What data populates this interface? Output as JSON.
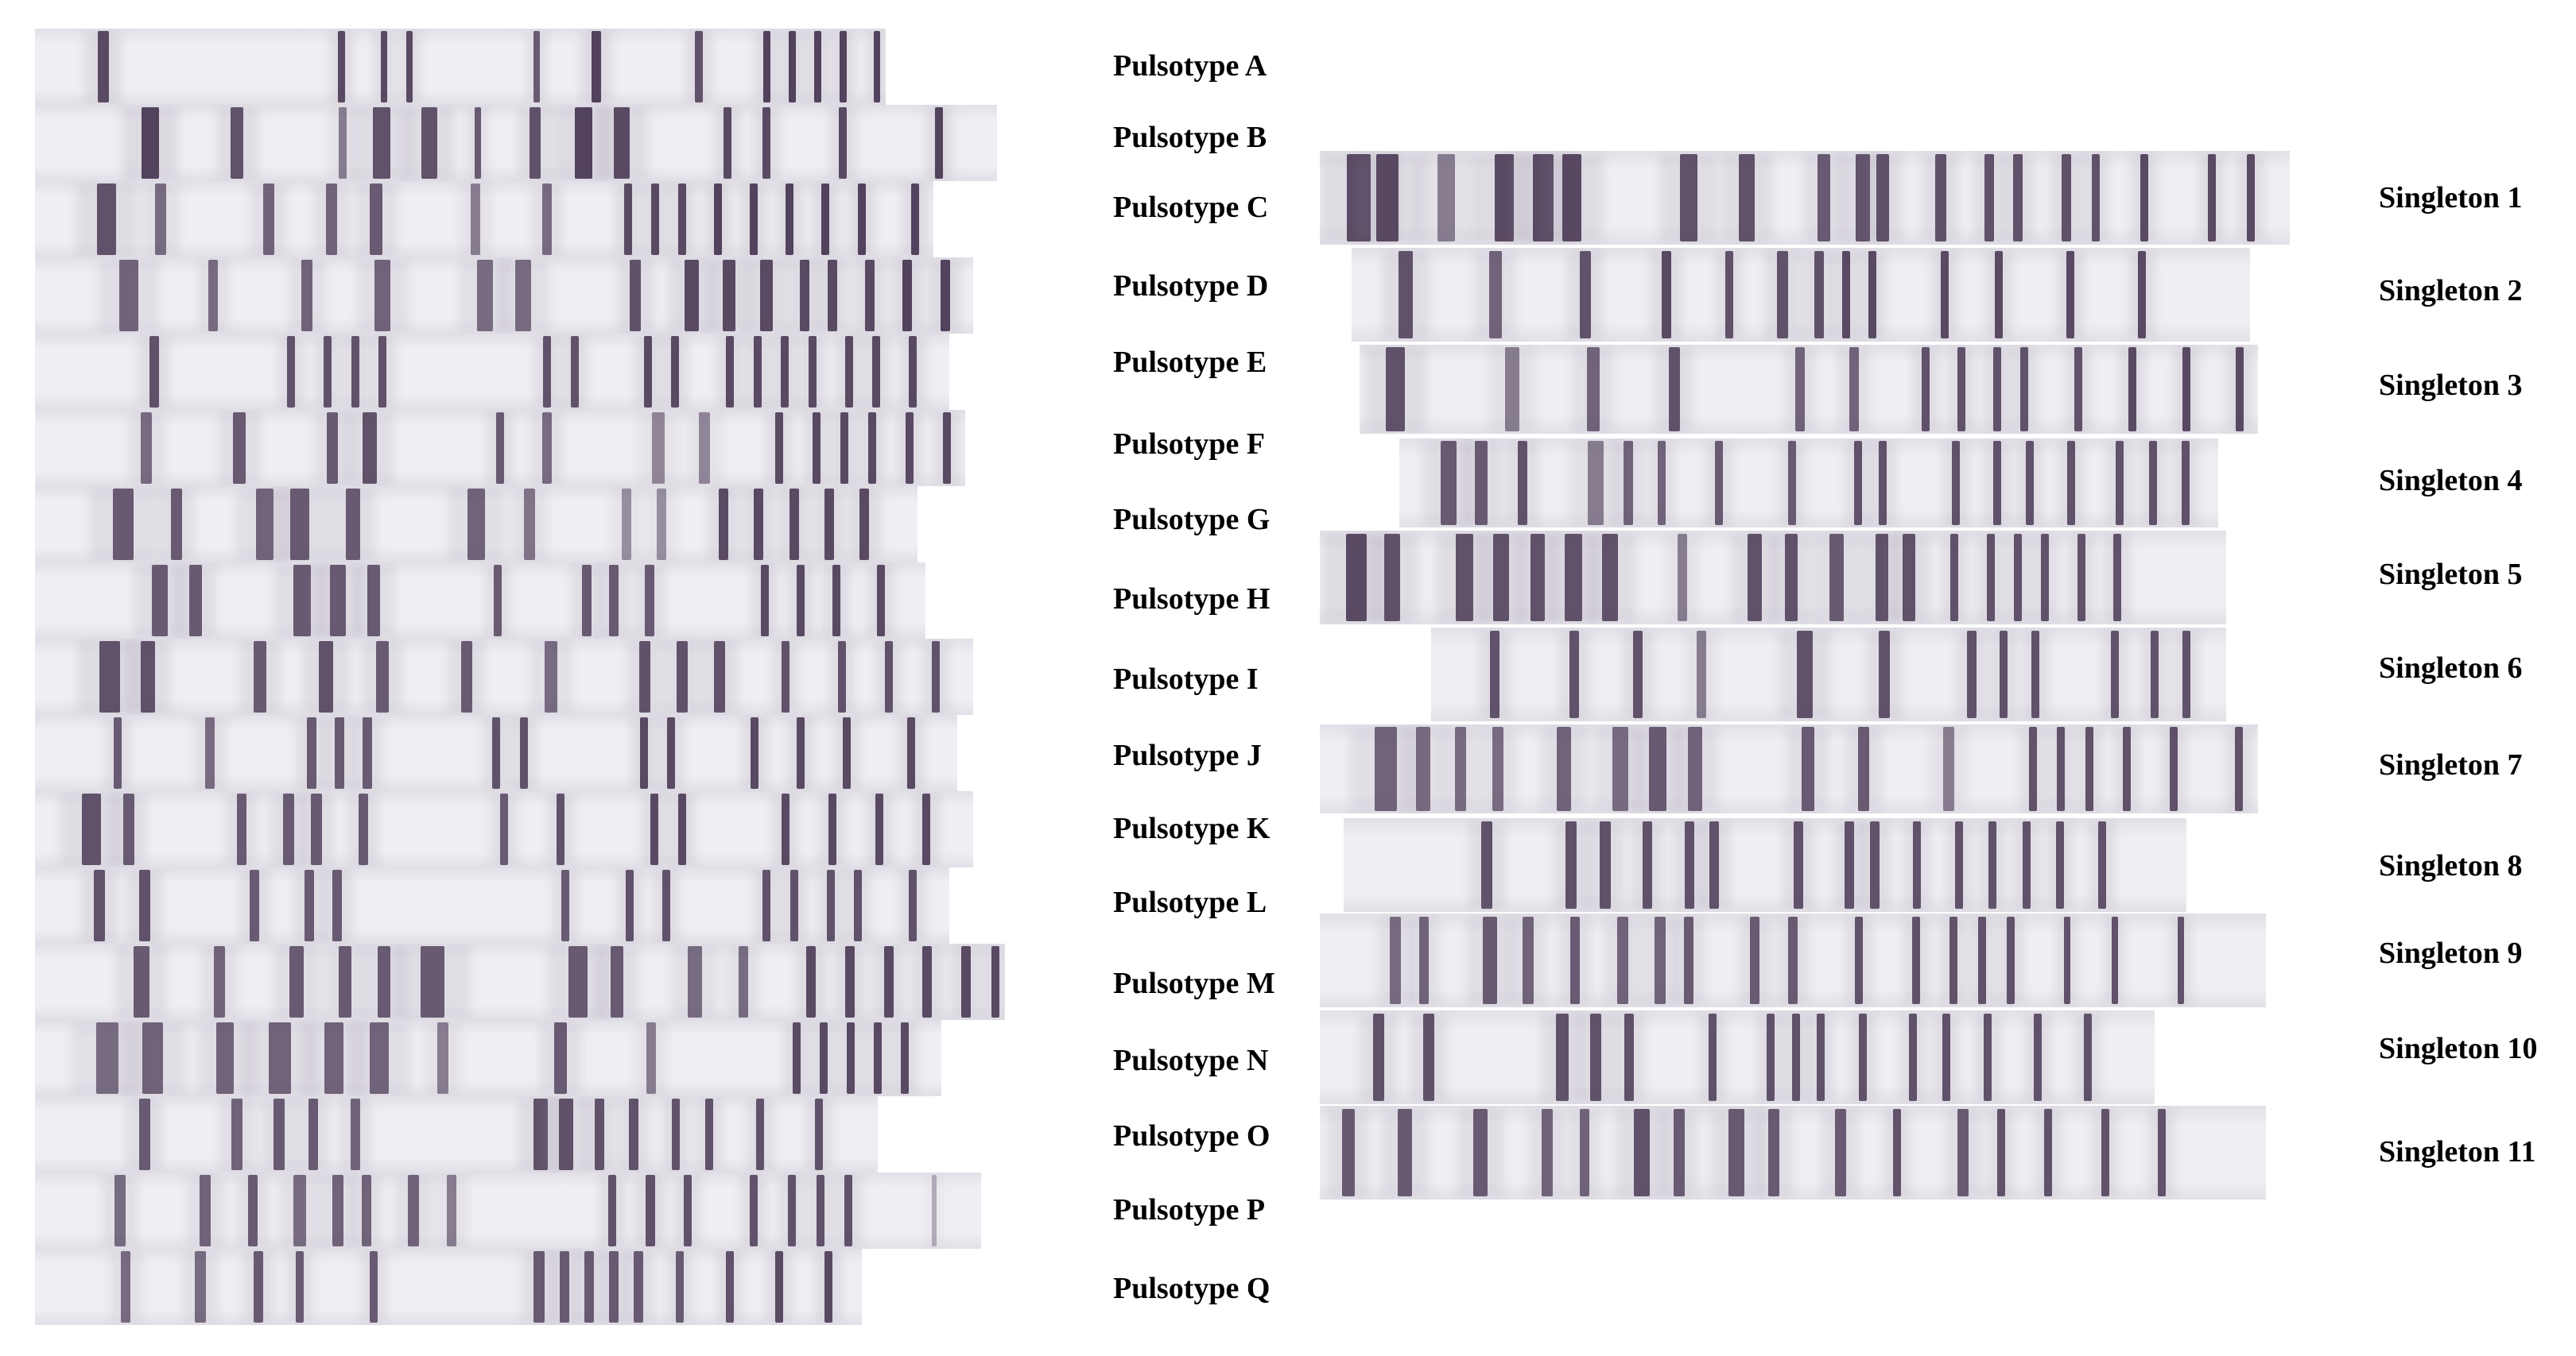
{
  "colors": {
    "band": "#4a3a55",
    "smear": "#8a7a95",
    "lane_bg": "#efeef2",
    "lane_edge": "#e2e0e7"
  },
  "pulsotypes": [
    {
      "label": "Pulsotype A"
    },
    {
      "label": "Pulsotype B"
    },
    {
      "label": "Pulsotype C"
    },
    {
      "label": "Pulsotype D"
    },
    {
      "label": "Pulsotype E"
    },
    {
      "label": "Pulsotype F"
    },
    {
      "label": "Pulsotype G"
    },
    {
      "label": "Pulsotype H"
    },
    {
      "label": "Pulsotype I"
    },
    {
      "label": "Pulsotype J"
    },
    {
      "label": "Pulsotype K"
    },
    {
      "label": "Pulsotype L"
    },
    {
      "label": "Pulsotype M"
    },
    {
      "label": "Pulsotype N"
    },
    {
      "label": "Pulsotype O"
    },
    {
      "label": "Pulsotype P"
    },
    {
      "label": "Pulsotype Q"
    }
  ],
  "singletons": [
    {
      "label": "Singleton 1"
    },
    {
      "label": "Singleton 2"
    },
    {
      "label": "Singleton 3"
    },
    {
      "label": "Singleton 4"
    },
    {
      "label": "Singleton 5"
    },
    {
      "label": "Singleton 6"
    },
    {
      "label": "Singleton 7"
    },
    {
      "label": "Singleton 8"
    },
    {
      "label": "Singleton 9"
    },
    {
      "label": "Singleton 10"
    },
    {
      "label": "Singleton 11"
    }
  ]
}
